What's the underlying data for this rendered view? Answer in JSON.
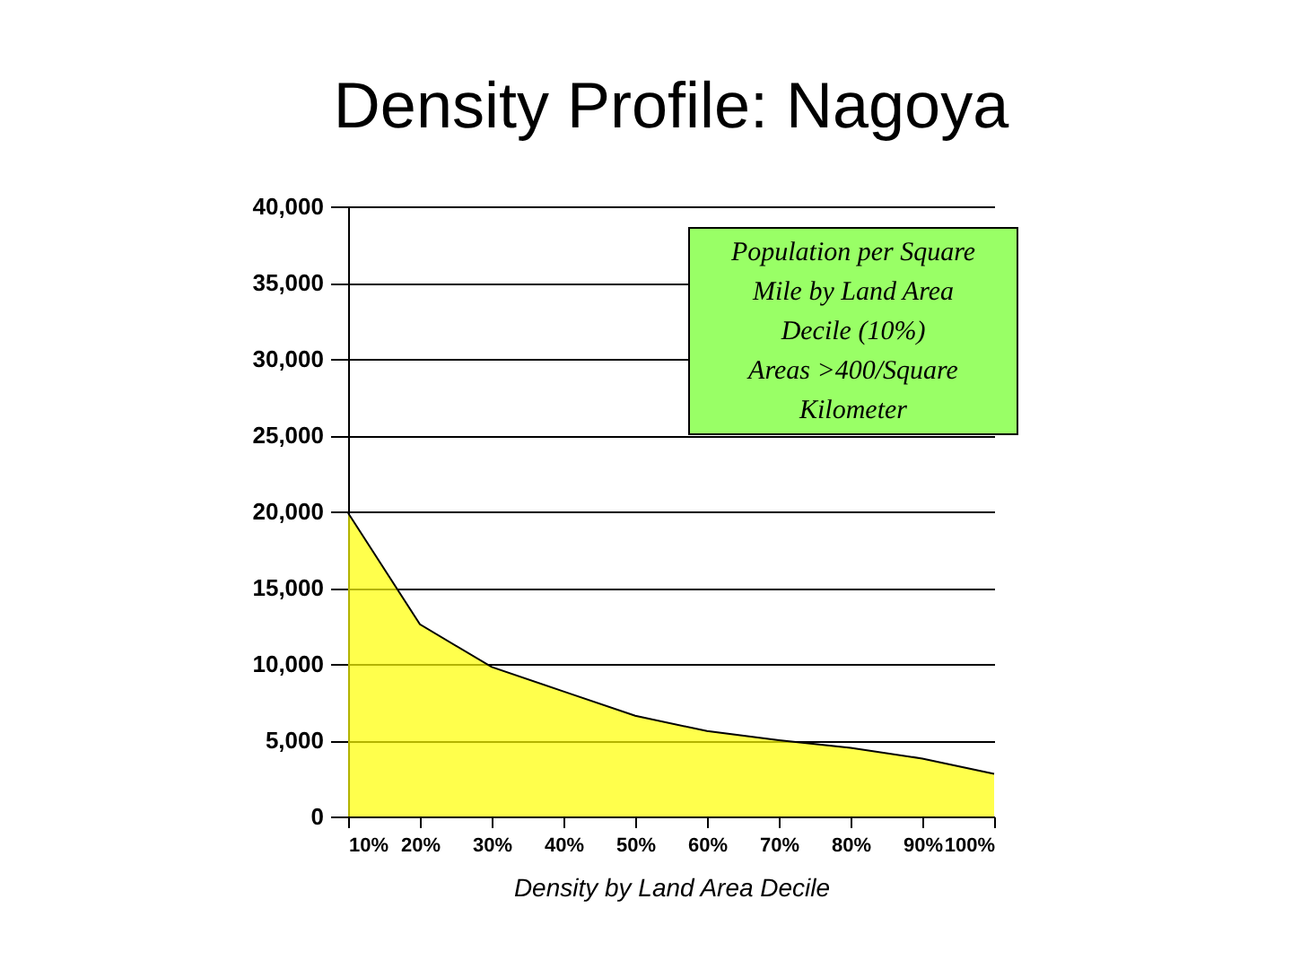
{
  "chart_data": {
    "type": "area",
    "title": "Density Profile: Nagoya",
    "xlabel": "Density by Land Area Decile",
    "categories": [
      "10%",
      "20%",
      "30%",
      "40%",
      "50%",
      "60%",
      "70%",
      "80%",
      "90%",
      "100%"
    ],
    "series": [
      {
        "color": "#ffff00",
        "values": [
          19900,
          12600,
          9800,
          8200,
          6600,
          5600,
          5000,
          4500,
          3800,
          2800
        ]
      }
    ],
    "ylim": [
      0,
      40000
    ],
    "yticks": [
      0,
      {
        "value": 5000,
        "label": "5,000"
      },
      {
        "value": 10000,
        "label": "10,000"
      },
      {
        "value": 15000,
        "label": "15,000"
      },
      {
        "value": 20000,
        "label": "20,000"
      },
      {
        "value": 25000,
        "label": "25,000"
      },
      {
        "value": 30000,
        "label": "30,000"
      },
      {
        "value": 35000,
        "label": "35,000"
      },
      {
        "value": 40000,
        "label": "40,000"
      }
    ],
    "grid": "y",
    "annotations": [
      "Population per Square\nMile by Land Area\nDecile (10%)\nAreas >400/Square\nKilometer"
    ]
  }
}
